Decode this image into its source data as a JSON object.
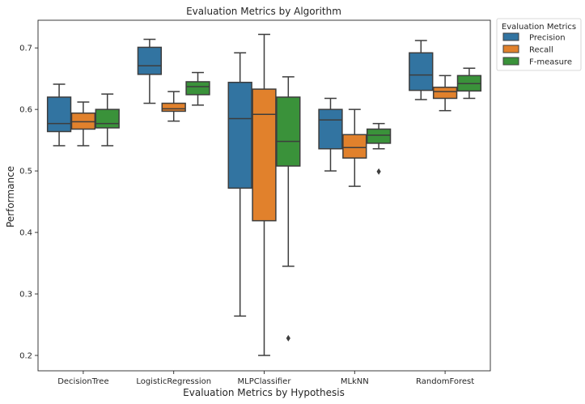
{
  "chart_data": {
    "type": "box",
    "title": "Evaluation Metrics by Algorithm",
    "xlabel": "Evaluation Metrics by Hypothesis",
    "ylabel": "Performance",
    "ylim": [
      0.175,
      0.745
    ],
    "yticks": [
      0.2,
      0.3,
      0.4,
      0.5,
      0.6,
      0.7
    ],
    "ytick_labels": [
      "0.2",
      "0.3",
      "0.4",
      "0.5",
      "0.6",
      "0.7"
    ],
    "grid": false,
    "categories": [
      "DecisionTree",
      "LogisticRegression",
      "MLPClassifier",
      "MLkNN",
      "RandomForest"
    ],
    "legend": {
      "title": "Evaluation Metrics",
      "placement": "outside-top-right"
    },
    "series": [
      {
        "name": "Precision",
        "color": "#3274a1",
        "boxes": [
          {
            "whisker_low": 0.541,
            "q1": 0.564,
            "median": 0.577,
            "q3": 0.62,
            "whisker_high": 0.641,
            "outliers": []
          },
          {
            "whisker_low": 0.61,
            "q1": 0.657,
            "median": 0.671,
            "q3": 0.701,
            "whisker_high": 0.714,
            "outliers": []
          },
          {
            "whisker_low": 0.264,
            "q1": 0.472,
            "median": 0.585,
            "q3": 0.644,
            "whisker_high": 0.692,
            "outliers": []
          },
          {
            "whisker_low": 0.5,
            "q1": 0.536,
            "median": 0.583,
            "q3": 0.6,
            "whisker_high": 0.618,
            "outliers": []
          },
          {
            "whisker_low": 0.616,
            "q1": 0.631,
            "median": 0.656,
            "q3": 0.692,
            "whisker_high": 0.712,
            "outliers": []
          }
        ]
      },
      {
        "name": "Recall",
        "color": "#e1812c",
        "boxes": [
          {
            "whisker_low": 0.541,
            "q1": 0.568,
            "median": 0.58,
            "q3": 0.594,
            "whisker_high": 0.612,
            "outliers": []
          },
          {
            "whisker_low": 0.581,
            "q1": 0.597,
            "median": 0.601,
            "q3": 0.61,
            "whisker_high": 0.629,
            "outliers": []
          },
          {
            "whisker_low": 0.2,
            "q1": 0.419,
            "median": 0.592,
            "q3": 0.633,
            "whisker_high": 0.722,
            "outliers": []
          },
          {
            "whisker_low": 0.475,
            "q1": 0.521,
            "median": 0.538,
            "q3": 0.559,
            "whisker_high": 0.6,
            "outliers": []
          },
          {
            "whisker_low": 0.598,
            "q1": 0.618,
            "median": 0.629,
            "q3": 0.636,
            "whisker_high": 0.655,
            "outliers": []
          }
        ]
      },
      {
        "name": "F-measure",
        "color": "#3a923a",
        "boxes": [
          {
            "whisker_low": 0.541,
            "q1": 0.57,
            "median": 0.577,
            "q3": 0.6,
            "whisker_high": 0.625,
            "outliers": []
          },
          {
            "whisker_low": 0.607,
            "q1": 0.624,
            "median": 0.637,
            "q3": 0.645,
            "whisker_high": 0.66,
            "outliers": []
          },
          {
            "whisker_low": 0.345,
            "q1": 0.508,
            "median": 0.548,
            "q3": 0.62,
            "whisker_high": 0.653,
            "outliers": [
              0.228
            ]
          },
          {
            "whisker_low": 0.536,
            "q1": 0.545,
            "median": 0.558,
            "q3": 0.568,
            "whisker_high": 0.577,
            "outliers": [
              0.499
            ]
          },
          {
            "whisker_low": 0.618,
            "q1": 0.63,
            "median": 0.642,
            "q3": 0.655,
            "whisker_high": 0.667,
            "outliers": []
          }
        ]
      }
    ]
  }
}
